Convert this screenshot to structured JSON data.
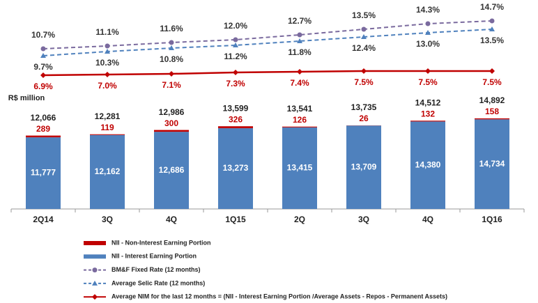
{
  "chart_data": {
    "type": "bar",
    "stacked": true,
    "y_label": "R$ million",
    "categories": [
      "2Q14",
      "3Q",
      "4Q",
      "1Q15",
      "2Q",
      "3Q",
      "4Q",
      "1Q16"
    ],
    "ylim": [
      0,
      15000
    ],
    "y2lim": [
      5,
      16
    ],
    "totals": {
      "values": [
        12066,
        12281,
        12986,
        13599,
        13541,
        13735,
        14512,
        14892
      ],
      "value_labels": [
        "12,066",
        "12,281",
        "12,986",
        "13,599",
        "13,541",
        "13,735",
        "14,512",
        "14,892"
      ]
    },
    "series": [
      {
        "name": "NII - Non-Interest Earning Portion",
        "type": "bar",
        "color": "#c00000",
        "values": [
          289,
          119,
          300,
          326,
          126,
          26,
          132,
          158
        ]
      },
      {
        "name": "NII - Interest Earning Portion",
        "type": "bar",
        "color": "#4f81bd",
        "values": [
          11777,
          12162,
          12686,
          13273,
          13415,
          13709,
          14380,
          14734
        ],
        "value_labels": [
          "11,777",
          "12,162",
          "12,686",
          "13,273",
          "13,415",
          "13,709",
          "14,380",
          "14,734"
        ]
      },
      {
        "name": "BM&F Fixed Rate (12 months)",
        "type": "line",
        "axis": "y2",
        "color": "#7a6a9e",
        "dashed": true,
        "marker": "circle",
        "label_position": "above",
        "values": [
          10.7,
          11.1,
          11.6,
          12.0,
          12.7,
          13.5,
          14.3,
          14.7
        ],
        "value_labels": [
          "10.7%",
          "11.1%",
          "11.6%",
          "12.0%",
          "12.7%",
          "13.5%",
          "14.3%",
          "14.7%"
        ]
      },
      {
        "name": "Average Selic Rate (12 months)",
        "type": "line",
        "axis": "y2",
        "color": "#4f81bd",
        "dashed": true,
        "marker": "triangle",
        "label_position": "below",
        "values": [
          9.7,
          10.3,
          10.8,
          11.2,
          11.8,
          12.4,
          13.0,
          13.5
        ],
        "value_labels": [
          "9.7%",
          "10.3%",
          "10.8%",
          "11.2%",
          "11.8%",
          "12.4%",
          "13.0%",
          "13.5%"
        ]
      },
      {
        "name": "Average NIM for the last 12 months = (NII - Interest Earning Portion /Average Assets - Repos - Permanent Assets)",
        "type": "line",
        "axis": "y2",
        "color": "#c00000",
        "dashed": false,
        "marker": "diamond",
        "label_position": "below",
        "values": [
          6.9,
          7.0,
          7.1,
          7.3,
          7.4,
          7.5,
          7.5,
          7.5
        ],
        "value_labels": [
          "6.9%",
          "7.0%",
          "7.1%",
          "7.3%",
          "7.4%",
          "7.5%",
          "7.5%",
          "7.5%"
        ]
      }
    ]
  }
}
